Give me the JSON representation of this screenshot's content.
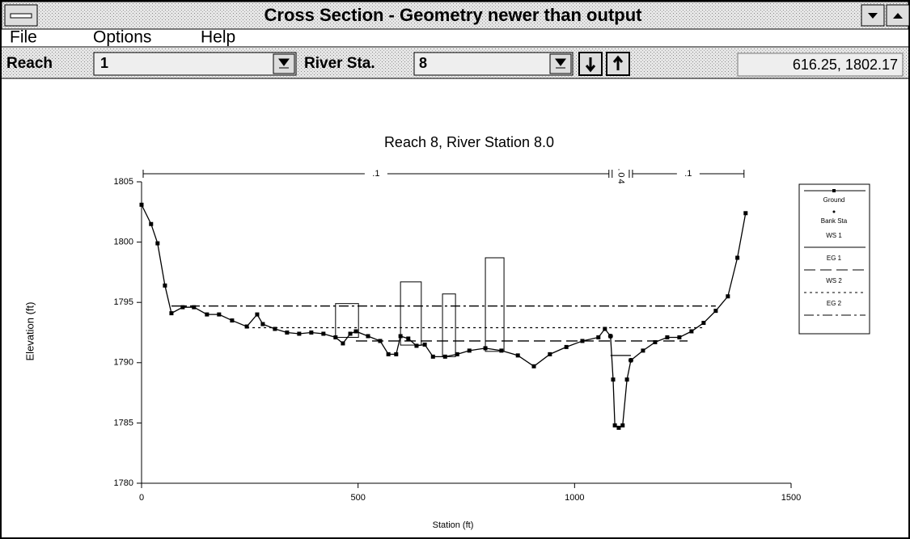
{
  "window": {
    "title": "Cross Section - Geometry newer than output"
  },
  "menu": [
    "File",
    "Options",
    "Help"
  ],
  "toolbar": {
    "reach_label": "Reach",
    "reach": "1",
    "station_label": "River Sta.",
    "station": "8",
    "coordinates": "616.25, 1802.17"
  },
  "chart_data": {
    "type": "line",
    "title": "Reach 8, River Station 8.0",
    "x_label": "Station (ft)",
    "y_label": "Elevation (ft)",
    "xlim": [
      0,
      1500
    ],
    "ylim": [
      1780,
      1805
    ],
    "xticks": [
      0,
      500,
      1000,
      1500
    ],
    "yticks": [
      1780,
      1785,
      1790,
      1795,
      1800,
      1805
    ],
    "series": [
      {
        "name": "Ground",
        "color": "#000000",
        "style": "solid",
        "x": [
          0,
          22,
          37,
          54,
          69,
          95,
          121,
          151,
          179,
          209,
          243,
          267,
          280,
          308,
          336,
          364,
          392,
          420,
          448,
          465,
          482,
          495,
          523,
          551,
          570,
          588,
          598,
          616,
          635,
          654,
          673,
          701,
          729,
          757,
          794,
          831,
          869,
          906,
          943,
          981,
          1018,
          1055,
          1070,
          1083,
          1089,
          1093,
          1102,
          1111,
          1121,
          1130,
          1158,
          1186,
          1214,
          1242,
          1270,
          1298,
          1326,
          1354,
          1376,
          1395
        ],
        "values": [
          1803.1,
          1801.5,
          1799.9,
          1796.4,
          1794.1,
          1794.6,
          1794.6,
          1794.0,
          1794.0,
          1793.5,
          1793.0,
          1794.0,
          1793.2,
          1792.8,
          1792.5,
          1792.4,
          1792.5,
          1792.4,
          1792.1,
          1791.6,
          1792.4,
          1792.6,
          1792.2,
          1791.8,
          1790.7,
          1790.7,
          1792.2,
          1792.0,
          1791.4,
          1791.5,
          1790.5,
          1790.5,
          1790.7,
          1791.0,
          1791.2,
          1791.0,
          1790.6,
          1789.7,
          1790.7,
          1791.3,
          1791.8,
          1792.1,
          1792.8,
          1792.2,
          1788.6,
          1784.8,
          1784.6,
          1784.8,
          1788.6,
          1790.2,
          1791.0,
          1791.7,
          1792.1,
          1792.1,
          1792.6,
          1793.3,
          1794.3,
          1795.5,
          1798.7,
          1802.4
        ]
      },
      {
        "name": "WS 1",
        "color": "#000000",
        "style": "solid",
        "x": [
          1083,
          1130
        ],
        "values": [
          1790.6,
          1790.6
        ]
      },
      {
        "name": "EG 1",
        "color": "#000000",
        "style": "dash",
        "x": [
          495,
          1261
        ],
        "values": [
          1791.8,
          1791.8
        ]
      },
      {
        "name": "WS 2",
        "color": "#000000",
        "style": "dot",
        "x": [
          243,
          1298
        ],
        "values": [
          1792.9,
          1792.9
        ]
      },
      {
        "name": "EG 2",
        "color": "#000000",
        "style": "dashdot",
        "x": [
          69,
          1326
        ],
        "values": [
          1794.7,
          1794.7
        ]
      }
    ],
    "bank_stations": {
      "name": "Bank Sta",
      "x": [
        1083,
        1130
      ]
    },
    "obstructions": [
      {
        "x": [
          448,
          501
        ],
        "top": 1794.9
      },
      {
        "x": [
          598,
          646
        ],
        "top": 1796.7
      },
      {
        "x": [
          695,
          725
        ],
        "top": 1795.7
      },
      {
        "x": [
          794,
          837
        ],
        "top": 1798.7
      }
    ],
    "roughness": {
      "labels": [
        ".1",
        ".04",
        ".1"
      ],
      "x": [
        0,
        1083,
        1130,
        1395
      ]
    }
  }
}
